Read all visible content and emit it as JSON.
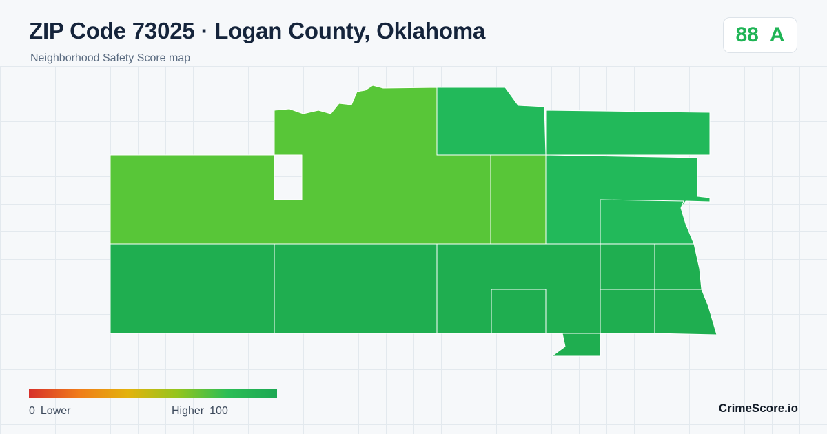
{
  "header": {
    "title": "ZIP Code 73025 · Logan County, Oklahoma",
    "subtitle": "Neighborhood Safety Score map"
  },
  "score": {
    "value": "88",
    "grade": "A",
    "color": "#1fb455"
  },
  "map": {
    "fill_colors": {
      "light_green": "#58c638",
      "mid_green": "#22b95a",
      "dark_green": "#1fae50"
    },
    "border_color": "#ffffff"
  },
  "legend": {
    "min_value": "0",
    "min_label": "Lower",
    "max_label": "Higher",
    "max_value": "100",
    "colors": [
      "#d7302b",
      "#f07c1a",
      "#e3b20c",
      "#93c51e",
      "#2bbd55",
      "#1ca853"
    ]
  },
  "brand": {
    "name": "CrimeScore.io"
  }
}
